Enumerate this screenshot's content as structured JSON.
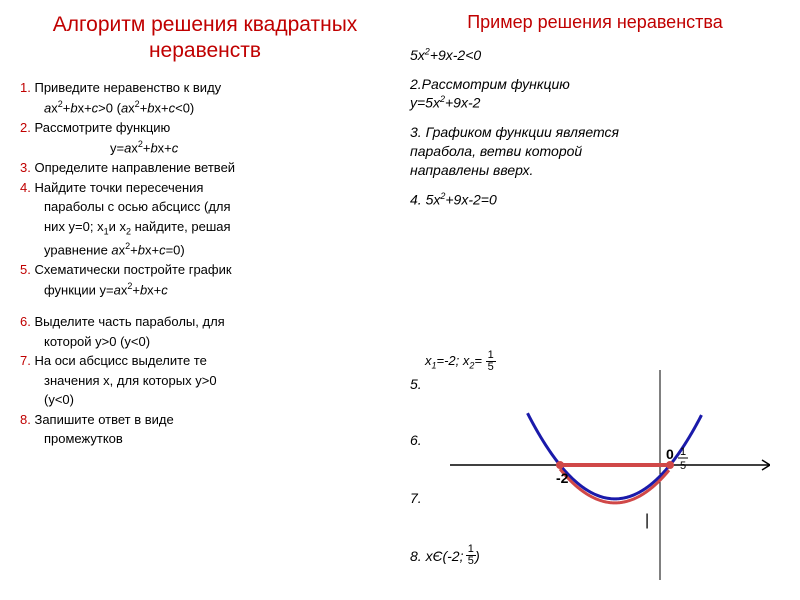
{
  "leftTitle": "Алгоритм решения квадратных неравенств",
  "rightTitle": "Пример решения неравенства",
  "leftSteps": {
    "s1a": "Приведите неравенство к виду",
    "s1b_html": "<span class='italic'>a</span>x<sup>2</sup>+<span class='italic'>b</span>x+<span class='italic'>c</span>&gt;0 (<span class='italic'>a</span>x<sup>2</sup>+<span class='italic'>b</span>x+<span class='italic'>c</span>&lt;0)",
    "s2a": "Рассмотрите функцию",
    "s2b_html": "y=<span class='italic'>a</span>x<sup>2</sup>+<span class='italic'>b</span>x+<span class='italic'>c</span>",
    "s3": "Определите направление ветвей",
    "s4a": "Найдите точки пересечения",
    "s4b": "параболы с осью абсцисс (для",
    "s4c_html": "них y=0; x<sub>1</sub>и x<sub>2</sub> найдите, решая",
    "s4d_html": "уравнение <span class='italic'>a</span>x<sup>2</sup>+<span class='italic'>b</span>x+<span class='italic'>c</span>=0)",
    "s5a": "Схематически постройте график",
    "s5b_html": "функции y=<span class='italic'>a</span>x<sup>2</sup>+<span class='italic'>b</span>x+<span class='italic'>c</span>",
    "s6a": "Выделите часть параболы, для",
    "s6b": "которой y>0 (y<0)",
    "s7a": "На оси абсцисс выделите те",
    "s7b": "значения x, для которых y>0",
    "s7c": "(y<0)",
    "s8a": "Запишите ответ в виде",
    "s8b": "промежутков"
  },
  "rightSteps": {
    "r1_html": "<span class='italic'>5x<sup>2</sup>+9x-2&lt;0</span>",
    "r2a": "2.Рассмотрим функцию",
    "r2b_html": "y=5x<sup>2</sup>+9x-2",
    "r3a": "3. Графиком функции является",
    "r3b": "парабола, ветви которой",
    "r3c": "направлены вверх.",
    "r4_html": "4. 5x<sup>2</sup>+9x-2=0",
    "roots_prefix_html": "x<sub>1</sub>=-2; x<sub>2</sub>=",
    "r5": "5.",
    "r6": "6.",
    "r7": "7.",
    "r8_html": "8. xЄ(-2;&nbsp;&nbsp;&nbsp;)"
  },
  "frac": {
    "num": "1",
    "den": "5"
  },
  "chart": {
    "colors": {
      "parabola": "#1a1aaa",
      "highlight": "#d04848",
      "axis": "#000000",
      "bg": "#ffffff"
    },
    "axis_label_neg2": "-2",
    "axis_label_0": "0",
    "parabola_stroke_width": 3,
    "highlight_stroke_width": 3,
    "vertex_x": -0.9,
    "roots": [
      -2,
      0.2
    ]
  }
}
